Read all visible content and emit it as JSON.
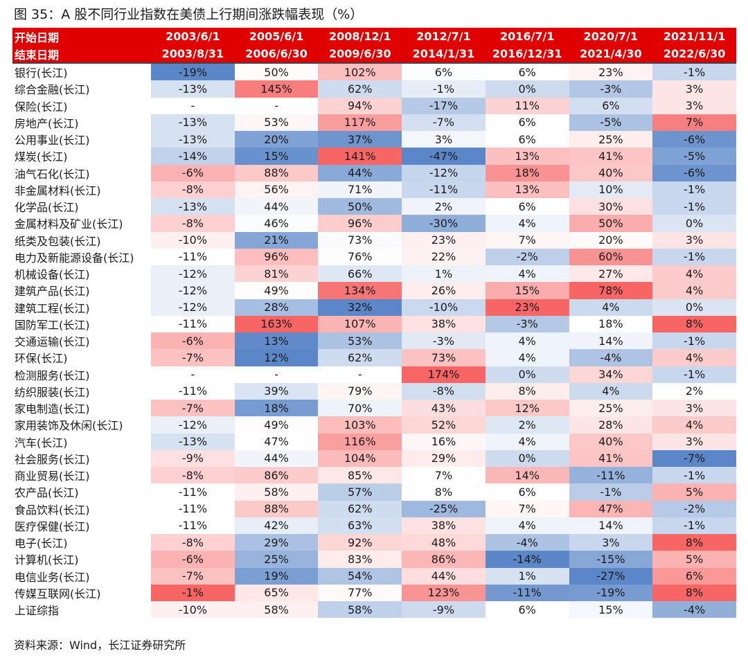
{
  "title": "图  35：A 股不同行业指数在美债上行期间涨跌幅表现（%）",
  "source": "资料来源：Wind，长江证券研究所",
  "chart_data": {
    "type": "table",
    "row_header_start": "开始日期",
    "row_header_end": "结束日期",
    "start_dates": [
      "2003/6/1",
      "2005/6/1",
      "2008/12/1",
      "2012/7/1",
      "2016/7/1",
      "2020/7/1",
      "2021/11/1"
    ],
    "end_dates": [
      "2003/8/31",
      "2006/6/30",
      "2009/6/30",
      "2014/1/31",
      "2016/12/31",
      "2021/4/30",
      "2022/6/30"
    ],
    "rows": [
      {
        "name": "银行(长江)",
        "values": [
          -19,
          50,
          102,
          6,
          6,
          23,
          -1
        ]
      },
      {
        "name": "综合金融(长江)",
        "values": [
          -13,
          145,
          62,
          -1,
          0,
          -3,
          3
        ]
      },
      {
        "name": "保险(长江)",
        "values": [
          null,
          null,
          94,
          -17,
          11,
          6,
          3
        ]
      },
      {
        "name": "房地产(长江)",
        "values": [
          -13,
          53,
          117,
          -7,
          6,
          -5,
          7
        ]
      },
      {
        "name": "公用事业(长江)",
        "values": [
          -13,
          20,
          37,
          3,
          6,
          25,
          -6
        ]
      },
      {
        "name": "煤炭(长江)",
        "values": [
          -14,
          15,
          141,
          -47,
          13,
          41,
          -5
        ]
      },
      {
        "name": "油气石化(长江)",
        "values": [
          -6,
          88,
          44,
          -12,
          18,
          40,
          -6
        ]
      },
      {
        "name": "非金属材料(长江)",
        "values": [
          -8,
          56,
          71,
          -11,
          13,
          10,
          -1
        ]
      },
      {
        "name": "化学品(长江)",
        "values": [
          -13,
          44,
          50,
          2,
          6,
          30,
          -1
        ]
      },
      {
        "name": "金属材料及矿业(长江)",
        "values": [
          -8,
          46,
          96,
          -30,
          4,
          50,
          0
        ]
      },
      {
        "name": "纸类及包装(长江)",
        "values": [
          -10,
          21,
          73,
          23,
          7,
          20,
          3
        ]
      },
      {
        "name": "电力及新能源设备(长江)",
        "values": [
          -11,
          96,
          76,
          22,
          -2,
          60,
          -1
        ]
      },
      {
        "name": "机械设备(长江)",
        "values": [
          -12,
          81,
          66,
          1,
          4,
          27,
          4
        ]
      },
      {
        "name": "建筑产品(长江)",
        "values": [
          -12,
          49,
          134,
          26,
          15,
          78,
          4
        ]
      },
      {
        "name": "建筑工程(长江)",
        "values": [
          -12,
          28,
          32,
          -10,
          23,
          4,
          0
        ]
      },
      {
        "name": "国防军工(长江)",
        "values": [
          -11,
          163,
          107,
          38,
          -3,
          18,
          8
        ]
      },
      {
        "name": "交通运输(长江)",
        "values": [
          -6,
          13,
          53,
          -3,
          4,
          14,
          -1
        ]
      },
      {
        "name": "环保(长江)",
        "values": [
          -7,
          12,
          62,
          73,
          4,
          -4,
          4
        ]
      },
      {
        "name": "检测服务(长江)",
        "values": [
          null,
          null,
          null,
          174,
          0,
          34,
          -1
        ]
      },
      {
        "name": "纺织服装(长江)",
        "values": [
          -11,
          39,
          79,
          -8,
          8,
          4,
          2
        ]
      },
      {
        "name": "家电制造(长江)",
        "values": [
          -7,
          18,
          70,
          43,
          12,
          25,
          3
        ]
      },
      {
        "name": "家用装饰及休闲(长江)",
        "values": [
          -12,
          49,
          103,
          52,
          2,
          28,
          4
        ]
      },
      {
        "name": "汽车(长江)",
        "values": [
          -13,
          47,
          116,
          16,
          4,
          40,
          3
        ]
      },
      {
        "name": "社会服务(长江)",
        "values": [
          -9,
          44,
          104,
          29,
          0,
          41,
          -7
        ]
      },
      {
        "name": "商业贸易(长江)",
        "values": [
          -8,
          86,
          85,
          7,
          14,
          -11,
          -1
        ]
      },
      {
        "name": "农产品(长江)",
        "values": [
          -11,
          58,
          57,
          8,
          6,
          -1,
          5
        ]
      },
      {
        "name": "食品饮料(长江)",
        "values": [
          -11,
          88,
          62,
          -25,
          7,
          47,
          -2
        ]
      },
      {
        "name": "医疗保健(长江)",
        "values": [
          -11,
          42,
          63,
          38,
          4,
          14,
          -1
        ]
      },
      {
        "name": "电子(长江)",
        "values": [
          -8,
          29,
          92,
          48,
          -4,
          3,
          8
        ]
      },
      {
        "name": "计算机(长江)",
        "values": [
          -6,
          25,
          83,
          86,
          -14,
          -15,
          5
        ]
      },
      {
        "name": "电信业务(长江)",
        "values": [
          -7,
          19,
          54,
          44,
          1,
          -27,
          6
        ]
      },
      {
        "name": "传媒互联网(长江)",
        "values": [
          -1,
          65,
          77,
          123,
          -11,
          -19,
          8
        ]
      },
      {
        "name": "上证综指",
        "values": [
          -10,
          58,
          58,
          -9,
          6,
          15,
          -4
        ]
      }
    ],
    "missing_symbol": "-",
    "unit_suffix": "%",
    "color_scale": {
      "low": "#5b87c8",
      "mid": "#ffffff",
      "high": "#f76565"
    }
  }
}
